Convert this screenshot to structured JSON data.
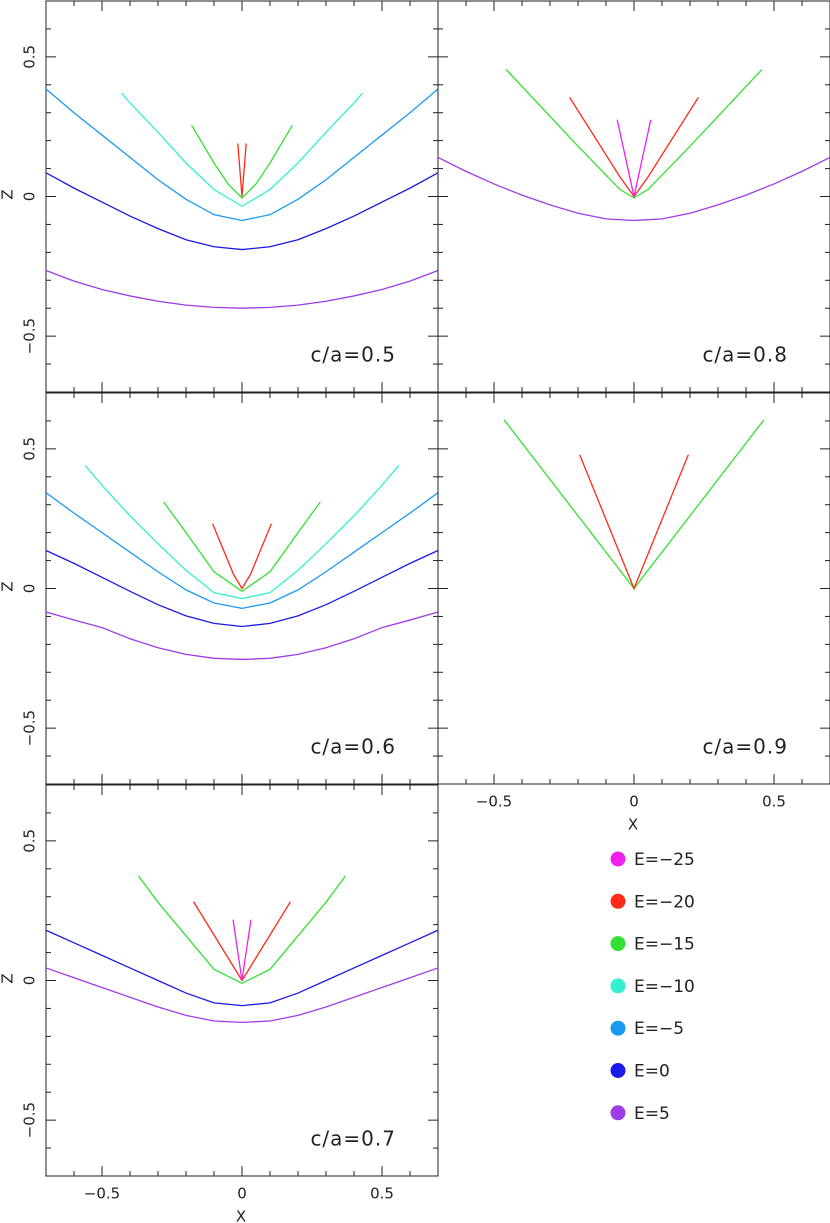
{
  "chart_data": [
    {
      "type": "line",
      "title": "c/a=0.5",
      "ylabel": "Z",
      "xlim": [
        -0.7,
        0.7
      ],
      "ylim": [
        -0.7,
        0.7
      ],
      "xticks": [
        {
          "value": -0.5,
          "label": "−0.5"
        },
        0,
        0.5
      ],
      "yticks": [
        {
          "value": -0.5,
          "label": "−0.5"
        },
        0,
        0.5
      ],
      "xminor": [
        -0.6,
        -0.4,
        -0.3,
        -0.2,
        -0.1,
        0.1,
        0.2,
        0.3,
        0.4,
        0.6
      ],
      "yminor": [
        -0.6,
        -0.4,
        -0.3,
        -0.2,
        -0.1,
        0.1,
        0.2,
        0.3,
        0.4,
        0.6
      ],
      "x_tick_labels": false,
      "y_tick_labels": true,
      "series": [
        {
          "name": "E=5",
          "color": "#a03ce6",
          "x": [
            -0.7,
            -0.6,
            -0.5,
            -0.4,
            -0.3,
            -0.2,
            -0.1,
            0,
            0.1,
            0.2,
            0.3,
            0.4,
            0.5,
            0.6,
            0.7
          ],
          "values": [
            -0.265,
            -0.303,
            -0.333,
            -0.356,
            -0.375,
            -0.389,
            -0.397,
            -0.4,
            -0.397,
            -0.389,
            -0.375,
            -0.356,
            -0.333,
            -0.303,
            -0.265
          ]
        },
        {
          "name": "E=0",
          "color": "#1a1ae6",
          "x": [
            -0.7,
            -0.6,
            -0.5,
            -0.4,
            -0.3,
            -0.2,
            -0.1,
            0,
            0.1,
            0.2,
            0.3,
            0.4,
            0.5,
            0.6,
            0.7
          ],
          "values": [
            0.085,
            0.03,
            -0.02,
            -0.07,
            -0.115,
            -0.155,
            -0.18,
            -0.19,
            -0.18,
            -0.155,
            -0.115,
            -0.07,
            -0.02,
            0.03,
            0.085
          ]
        },
        {
          "name": "E=−5",
          "color": "#1a9af0",
          "x": [
            -0.7,
            -0.6,
            -0.5,
            -0.4,
            -0.3,
            -0.2,
            -0.1,
            0,
            0.1,
            0.2,
            0.3,
            0.4,
            0.5,
            0.6,
            0.7
          ],
          "values": [
            0.385,
            0.3,
            0.22,
            0.14,
            0.06,
            -0.01,
            -0.065,
            -0.086,
            -0.065,
            -0.01,
            0.06,
            0.14,
            0.22,
            0.3,
            0.385
          ]
        },
        {
          "name": "E=−10",
          "color": "#33f0d0",
          "x": [
            -0.43,
            -0.4,
            -0.3,
            -0.2,
            -0.1,
            0,
            0.1,
            0.2,
            0.3,
            0.4,
            0.43
          ],
          "values": [
            0.37,
            0.335,
            0.23,
            0.12,
            0.025,
            -0.035,
            0.025,
            0.12,
            0.23,
            0.335,
            0.37
          ]
        },
        {
          "name": "E=−15",
          "color": "#33e033",
          "x": [
            -0.18,
            -0.1,
            -0.05,
            0,
            0.05,
            0.1,
            0.18
          ],
          "values": [
            0.255,
            0.12,
            0.045,
            -0.005,
            0.045,
            0.12,
            0.255
          ]
        },
        {
          "name": "E=−20",
          "color": "#ff2a1a",
          "x": [
            -0.015,
            0,
            0.015
          ],
          "values": [
            0.19,
            0,
            0.19
          ]
        }
      ]
    },
    {
      "type": "line",
      "title": "c/a=0.8",
      "xlim": [
        -0.7,
        0.7
      ],
      "ylim": [
        -0.7,
        0.7
      ],
      "xticks": [
        {
          "value": -0.5,
          "label": "−0.5"
        },
        0,
        0.5
      ],
      "yticks": [
        {
          "value": -0.5,
          "label": "−0.5"
        },
        0,
        0.5
      ],
      "xminor": [
        -0.6,
        -0.4,
        -0.3,
        -0.2,
        -0.1,
        0.1,
        0.2,
        0.3,
        0.4,
        0.6
      ],
      "yminor": [
        -0.6,
        -0.4,
        -0.3,
        -0.2,
        -0.1,
        0.1,
        0.2,
        0.3,
        0.4,
        0.6
      ],
      "x_tick_labels": false,
      "y_tick_labels": false,
      "series": [
        {
          "name": "E=5",
          "color": "#a03ce6",
          "x": [
            -0.7,
            -0.6,
            -0.5,
            -0.4,
            -0.3,
            -0.2,
            -0.1,
            0,
            0.1,
            0.2,
            0.3,
            0.4,
            0.5,
            0.6,
            0.7
          ],
          "values": [
            0.14,
            0.09,
            0.045,
            0.005,
            -0.03,
            -0.06,
            -0.08,
            -0.086,
            -0.08,
            -0.06,
            -0.03,
            0.005,
            0.045,
            0.09,
            0.14
          ]
        },
        {
          "name": "E=−15",
          "color": "#33e033",
          "x": [
            -0.457,
            -0.2,
            -0.05,
            0,
            0.05,
            0.2,
            0.457
          ],
          "values": [
            0.455,
            0.18,
            0.025,
            -0.005,
            0.025,
            0.18,
            0.455
          ]
        },
        {
          "name": "E=−20",
          "color": "#ff2a1a",
          "x": [
            -0.23,
            -0.05,
            0,
            0.05,
            0.23
          ],
          "values": [
            0.355,
            0.07,
            0,
            0.07,
            0.355
          ]
        },
        {
          "name": "E=−25",
          "color": "#f020f0",
          "x": [
            -0.06,
            0,
            0.06
          ],
          "values": [
            0.275,
            0,
            0.275
          ]
        }
      ]
    },
    {
      "type": "line",
      "title": "c/a=0.6",
      "ylabel": "Z",
      "xlim": [
        -0.7,
        0.7
      ],
      "ylim": [
        -0.7,
        0.7
      ],
      "xticks": [
        {
          "value": -0.5,
          "label": "−0.5"
        },
        0,
        0.5
      ],
      "yticks": [
        {
          "value": -0.5,
          "label": "−0.5"
        },
        0,
        0.5
      ],
      "xminor": [
        -0.6,
        -0.4,
        -0.3,
        -0.2,
        -0.1,
        0.1,
        0.2,
        0.3,
        0.4,
        0.6
      ],
      "yminor": [
        -0.6,
        -0.4,
        -0.3,
        -0.2,
        -0.1,
        0.1,
        0.2,
        0.3,
        0.4,
        0.6
      ],
      "x_tick_labels": false,
      "y_tick_labels": true,
      "series": [
        {
          "name": "E=5",
          "color": "#a03ce6",
          "x": [
            -0.7,
            -0.6,
            -0.5,
            -0.4,
            -0.3,
            -0.2,
            -0.1,
            0,
            0.1,
            0.2,
            0.3,
            0.4,
            0.5,
            0.6,
            0.7
          ],
          "values": [
            -0.084,
            -0.113,
            -0.14,
            -0.18,
            -0.212,
            -0.236,
            -0.25,
            -0.254,
            -0.25,
            -0.236,
            -0.212,
            -0.18,
            -0.14,
            -0.113,
            -0.084
          ]
        },
        {
          "name": "E=0",
          "color": "#1a1ae6",
          "x": [
            -0.7,
            -0.6,
            -0.5,
            -0.4,
            -0.3,
            -0.2,
            -0.1,
            0,
            0.1,
            0.2,
            0.3,
            0.4,
            0.5,
            0.6,
            0.7
          ],
          "values": [
            0.136,
            0.09,
            0.04,
            -0.01,
            -0.058,
            -0.098,
            -0.125,
            -0.136,
            -0.125,
            -0.098,
            -0.058,
            -0.01,
            0.04,
            0.09,
            0.136
          ]
        },
        {
          "name": "E=−5",
          "color": "#1a9af0",
          "x": [
            -0.7,
            -0.6,
            -0.5,
            -0.4,
            -0.3,
            -0.2,
            -0.1,
            0,
            0.1,
            0.2,
            0.3,
            0.4,
            0.5,
            0.6,
            0.7
          ],
          "values": [
            0.343,
            0.27,
            0.2,
            0.13,
            0.06,
            -0.005,
            -0.052,
            -0.071,
            -0.052,
            -0.005,
            0.06,
            0.13,
            0.2,
            0.27,
            0.343
          ]
        },
        {
          "name": "E=−10",
          "color": "#33f0d0",
          "x": [
            -0.56,
            -0.5,
            -0.4,
            -0.3,
            -0.2,
            -0.1,
            0,
            0.1,
            0.2,
            0.3,
            0.4,
            0.5,
            0.56
          ],
          "values": [
            0.44,
            0.37,
            0.26,
            0.16,
            0.065,
            -0.015,
            -0.036,
            -0.015,
            0.065,
            0.16,
            0.26,
            0.37,
            0.44
          ]
        },
        {
          "name": "E=−15",
          "color": "#33e033",
          "x": [
            -0.28,
            -0.2,
            -0.1,
            0,
            0.1,
            0.2,
            0.28
          ],
          "values": [
            0.31,
            0.2,
            0.06,
            -0.01,
            0.06,
            0.2,
            0.31
          ]
        },
        {
          "name": "E=−20",
          "color": "#ff2a1a",
          "x": [
            -0.105,
            -0.03,
            0,
            0.03,
            0.105
          ],
          "values": [
            0.232,
            0.05,
            0,
            0.05,
            0.232
          ]
        }
      ]
    },
    {
      "type": "line",
      "title": "c/a=0.9",
      "xlabel": "X",
      "xlim": [
        -0.7,
        0.7
      ],
      "ylim": [
        -0.7,
        0.7
      ],
      "xticks": [
        {
          "value": -0.5,
          "label": "−0.5"
        },
        0,
        0.5
      ],
      "yticks": [
        {
          "value": -0.5,
          "label": "−0.5"
        },
        0,
        0.5
      ],
      "xminor": [
        -0.6,
        -0.4,
        -0.3,
        -0.2,
        -0.1,
        0.1,
        0.2,
        0.3,
        0.4,
        0.6
      ],
      "yminor": [
        -0.6,
        -0.4,
        -0.3,
        -0.2,
        -0.1,
        0.1,
        0.2,
        0.3,
        0.4,
        0.6
      ],
      "x_tick_labels": true,
      "y_tick_labels": false,
      "series": [
        {
          "name": "E=−15",
          "color": "#33e033",
          "x": [
            -0.464,
            0,
            0.464
          ],
          "values": [
            0.604,
            0,
            0.604
          ]
        },
        {
          "name": "E=−20",
          "color": "#ff2a1a",
          "x": [
            -0.194,
            0,
            0.194
          ],
          "values": [
            0.479,
            0,
            0.479
          ]
        }
      ]
    },
    {
      "type": "line",
      "title": "c/a=0.7",
      "xlabel": "X",
      "ylabel": "Z",
      "xlim": [
        -0.7,
        0.7
      ],
      "ylim": [
        -0.7,
        0.7
      ],
      "xticks": [
        {
          "value": -0.5,
          "label": "−0.5"
        },
        0,
        0.5
      ],
      "yticks": [
        {
          "value": -0.5,
          "label": "−0.5"
        },
        0,
        0.5
      ],
      "xminor": [
        -0.6,
        -0.4,
        -0.3,
        -0.2,
        -0.1,
        0.1,
        0.2,
        0.3,
        0.4,
        0.6
      ],
      "yminor": [
        -0.6,
        -0.4,
        -0.3,
        -0.2,
        -0.1,
        0.1,
        0.2,
        0.3,
        0.4,
        0.6
      ],
      "x_tick_labels": true,
      "y_tick_labels": true,
      "series": [
        {
          "name": "E=5",
          "color": "#a03ce6",
          "x": [
            -0.7,
            -0.6,
            -0.5,
            -0.4,
            -0.3,
            -0.2,
            -0.1,
            0,
            0.1,
            0.2,
            0.3,
            0.4,
            0.5,
            0.6,
            0.7
          ],
          "values": [
            0.045,
            0.01,
            -0.025,
            -0.06,
            -0.095,
            -0.125,
            -0.145,
            -0.15,
            -0.145,
            -0.125,
            -0.095,
            -0.06,
            -0.025,
            0.01,
            0.045
          ]
        },
        {
          "name": "E=0",
          "color": "#1a1ae6",
          "x": [
            -0.7,
            -0.6,
            -0.5,
            -0.4,
            -0.3,
            -0.2,
            -0.1,
            0,
            0.1,
            0.2,
            0.3,
            0.4,
            0.5,
            0.6,
            0.7
          ],
          "values": [
            0.18,
            0.135,
            0.09,
            0.045,
            0,
            -0.045,
            -0.08,
            -0.09,
            -0.08,
            -0.045,
            0,
            0.045,
            0.09,
            0.135,
            0.18
          ]
        },
        {
          "name": "E=−15",
          "color": "#33e033",
          "x": [
            -0.37,
            -0.3,
            -0.2,
            -0.1,
            0,
            0.1,
            0.2,
            0.3,
            0.37
          ],
          "values": [
            0.375,
            0.28,
            0.16,
            0.04,
            -0.01,
            0.04,
            0.16,
            0.28,
            0.375
          ]
        },
        {
          "name": "E=−20",
          "color": "#ff2a1a",
          "x": [
            -0.173,
            0,
            0.173
          ],
          "values": [
            0.282,
            0,
            0.282
          ]
        },
        {
          "name": "E=−25",
          "color": "#f020f0",
          "x": [
            -0.032,
            0,
            0.032
          ],
          "values": [
            0.218,
            0,
            0.218
          ]
        }
      ]
    }
  ],
  "legend": [
    {
      "name": "E=−25",
      "color": "#f020f0"
    },
    {
      "name": "E=−20",
      "color": "#ff2a1a"
    },
    {
      "name": "E=−15",
      "color": "#33e033"
    },
    {
      "name": "E=−10",
      "color": "#33f0d0"
    },
    {
      "name": "E=−5",
      "color": "#1a9af0"
    },
    {
      "name": "E=0",
      "color": "#1a1ae6"
    },
    {
      "name": "E=5",
      "color": "#a03ce6"
    }
  ]
}
